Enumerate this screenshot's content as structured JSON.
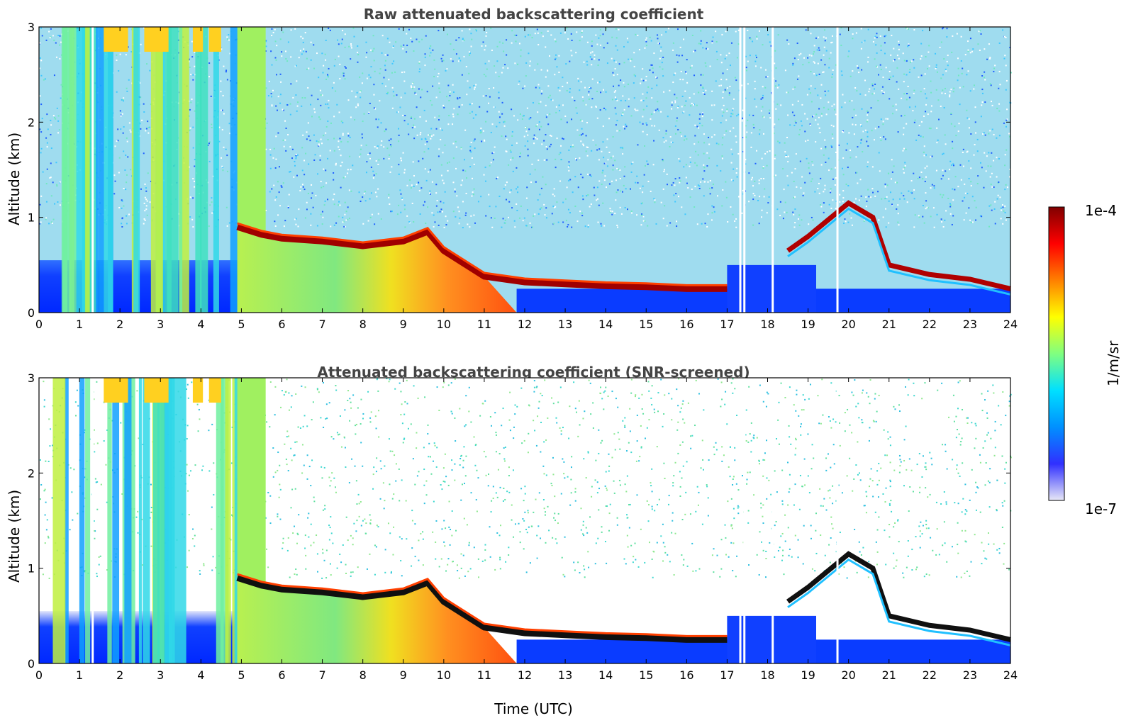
{
  "chart_data": [
    {
      "type": "heatmap",
      "title": "Raw attenuated backscattering coefficient",
      "xlabel": "",
      "ylabel": "Altitude (km)",
      "xlim": [
        0,
        24
      ],
      "ylim": [
        0,
        3
      ],
      "xticks": [
        "0",
        "1",
        "2",
        "3",
        "4",
        "5",
        "6",
        "7",
        "8",
        "9",
        "10",
        "11",
        "12",
        "13",
        "14",
        "15",
        "16",
        "17",
        "18",
        "19",
        "20",
        "21",
        "22",
        "23",
        "24"
      ],
      "yticks": [
        "0",
        "1",
        "2",
        "3"
      ],
      "features": {
        "cloud_base_km": [
          [
            4.9,
            0.9
          ],
          [
            5.5,
            0.82
          ],
          [
            6,
            0.78
          ],
          [
            7,
            0.75
          ],
          [
            8,
            0.7
          ],
          [
            9,
            0.75
          ],
          [
            9.6,
            0.85
          ],
          [
            10,
            0.65
          ],
          [
            11,
            0.38
          ],
          [
            12,
            0.32
          ],
          [
            13,
            0.3
          ],
          [
            14,
            0.28
          ],
          [
            15,
            0.27
          ],
          [
            16,
            0.25
          ],
          [
            17,
            0.25
          ]
        ],
        "late_cloud_km": [
          [
            18.5,
            0.65
          ],
          [
            19,
            0.8
          ],
          [
            20,
            1.15
          ],
          [
            20.6,
            1.0
          ],
          [
            21,
            0.5
          ],
          [
            22,
            0.4
          ],
          [
            23,
            0.35
          ],
          [
            24,
            0.25
          ]
        ]
      }
    },
    {
      "type": "heatmap",
      "title": "Attenuated backscattering coefficient (SNR-screened)",
      "xlabel": "Time (UTC)",
      "ylabel": "Altitude (km)",
      "xlim": [
        0,
        24
      ],
      "ylim": [
        0,
        3
      ],
      "xticks": [
        "0",
        "1",
        "2",
        "3",
        "4",
        "5",
        "6",
        "7",
        "8",
        "9",
        "10",
        "11",
        "12",
        "13",
        "14",
        "15",
        "16",
        "17",
        "18",
        "19",
        "20",
        "21",
        "22",
        "23",
        "24"
      ],
      "yticks": [
        "0",
        "1",
        "2",
        "3"
      ]
    }
  ],
  "colorbar": {
    "label": "1/m/sr",
    "max_label": "1e-4",
    "min_label": "1e-7",
    "colors": [
      "#e8e8f6",
      "#3030ff",
      "#0090ff",
      "#00e0ff",
      "#80ff80",
      "#ffff00",
      "#ff8000",
      "#ff0000",
      "#800000"
    ]
  }
}
